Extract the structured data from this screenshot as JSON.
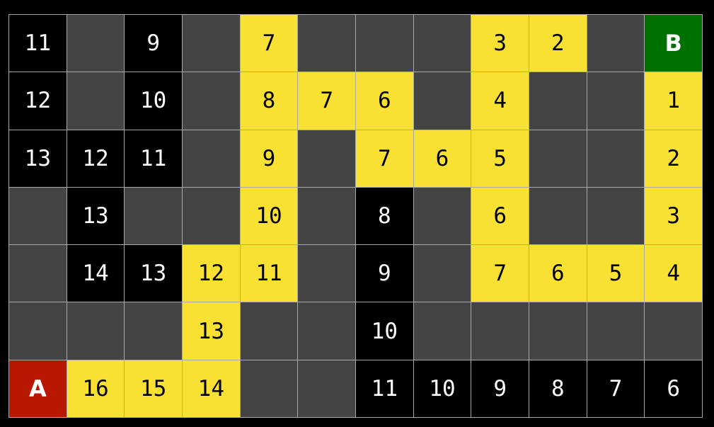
{
  "colors": {
    "wall": "#444444",
    "visited": "#000000",
    "path": "#f9e133",
    "start": "#b91800",
    "goal": "#007100",
    "grid_line": "#a8a8a8"
  },
  "legend_types": {
    "w": "wall",
    "v": "visited",
    "p": "path",
    "A": "start",
    "B": "goal"
  },
  "maze": {
    "rows": [
      [
        [
          "v",
          "11"
        ],
        [
          "w",
          ""
        ],
        [
          "v",
          "9"
        ],
        [
          "w",
          ""
        ],
        [
          "p",
          "7"
        ],
        [
          "w",
          ""
        ],
        [
          "w",
          ""
        ],
        [
          "w",
          ""
        ],
        [
          "p",
          "3"
        ],
        [
          "p",
          "2"
        ],
        [
          "w",
          ""
        ],
        [
          "B",
          "B"
        ]
      ],
      [
        [
          "v",
          "12"
        ],
        [
          "w",
          ""
        ],
        [
          "v",
          "10"
        ],
        [
          "w",
          ""
        ],
        [
          "p",
          "8"
        ],
        [
          "p",
          "7"
        ],
        [
          "p",
          "6"
        ],
        [
          "w",
          ""
        ],
        [
          "p",
          "4"
        ],
        [
          "w",
          ""
        ],
        [
          "w",
          ""
        ],
        [
          "p",
          "1"
        ]
      ],
      [
        [
          "v",
          "13"
        ],
        [
          "v",
          "12"
        ],
        [
          "v",
          "11"
        ],
        [
          "w",
          ""
        ],
        [
          "p",
          "9"
        ],
        [
          "w",
          ""
        ],
        [
          "p",
          "7"
        ],
        [
          "p",
          "6"
        ],
        [
          "p",
          "5"
        ],
        [
          "w",
          ""
        ],
        [
          "w",
          ""
        ],
        [
          "p",
          "2"
        ]
      ],
      [
        [
          "w",
          ""
        ],
        [
          "v",
          "13"
        ],
        [
          "w",
          ""
        ],
        [
          "w",
          ""
        ],
        [
          "p",
          "10"
        ],
        [
          "w",
          ""
        ],
        [
          "v",
          "8"
        ],
        [
          "w",
          ""
        ],
        [
          "p",
          "6"
        ],
        [
          "w",
          ""
        ],
        [
          "w",
          ""
        ],
        [
          "p",
          "3"
        ]
      ],
      [
        [
          "w",
          ""
        ],
        [
          "v",
          "14"
        ],
        [
          "v",
          "13"
        ],
        [
          "p",
          "12"
        ],
        [
          "p",
          "11"
        ],
        [
          "w",
          ""
        ],
        [
          "v",
          "9"
        ],
        [
          "w",
          ""
        ],
        [
          "p",
          "7"
        ],
        [
          "p",
          "6"
        ],
        [
          "p",
          "5"
        ],
        [
          "p",
          "4"
        ]
      ],
      [
        [
          "w",
          ""
        ],
        [
          "w",
          ""
        ],
        [
          "w",
          ""
        ],
        [
          "p",
          "13"
        ],
        [
          "w",
          ""
        ],
        [
          "w",
          ""
        ],
        [
          "v",
          "10"
        ],
        [
          "w",
          ""
        ],
        [
          "w",
          ""
        ],
        [
          "w",
          ""
        ],
        [
          "w",
          ""
        ],
        [
          "w",
          ""
        ]
      ],
      [
        [
          "A",
          "A"
        ],
        [
          "p",
          "16"
        ],
        [
          "p",
          "15"
        ],
        [
          "p",
          "14"
        ],
        [
          "w",
          ""
        ],
        [
          "w",
          ""
        ],
        [
          "v",
          "11"
        ],
        [
          "v",
          "10"
        ],
        [
          "v",
          "9"
        ],
        [
          "v",
          "8"
        ],
        [
          "v",
          "7"
        ],
        [
          "v",
          "6"
        ]
      ]
    ]
  }
}
